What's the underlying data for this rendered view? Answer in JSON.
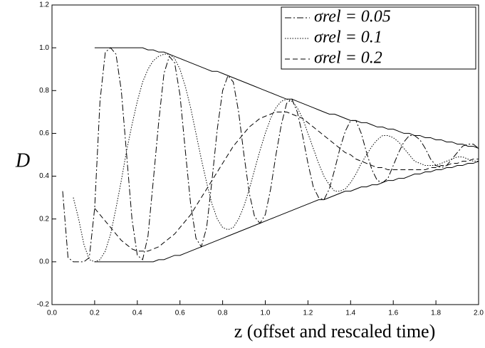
{
  "chart_data": {
    "type": "line",
    "xlabel": "z (offset and rescaled time)",
    "ylabel": "D",
    "xlim": [
      0,
      2
    ],
    "ylim": [
      -0.2,
      1.2
    ],
    "xticks": [
      {
        "value": 0,
        "label": "0.0"
      },
      0.2,
      0.4,
      0.6,
      0.8,
      {
        "value": 1,
        "label": "1.0"
      },
      1.2,
      1.4,
      1.6,
      1.8,
      {
        "value": 2,
        "label": "2.0"
      }
    ],
    "yticks": [
      -0.2,
      {
        "value": 0,
        "label": "0.0"
      },
      0.2,
      0.4,
      0.6,
      0.8,
      {
        "value": 1,
        "label": "1.0"
      },
      1.2
    ],
    "legend": "upper right",
    "x": [
      0.05,
      0.075,
      0.1,
      0.125,
      0.15,
      0.175,
      0.2,
      0.225,
      0.25,
      0.275,
      0.3,
      0.325,
      0.35,
      0.375,
      0.4,
      0.425,
      0.45,
      0.475,
      0.5,
      0.525,
      0.55,
      0.575,
      0.6,
      0.625,
      0.65,
      0.675,
      0.7,
      0.725,
      0.75,
      0.775,
      0.8,
      0.825,
      0.85,
      0.875,
      0.9,
      0.925,
      0.95,
      0.975,
      1.0,
      1.025,
      1.05,
      1.075,
      1.1,
      1.125,
      1.15,
      1.175,
      1.2,
      1.225,
      1.25,
      1.275,
      1.3,
      1.325,
      1.35,
      1.375,
      1.4,
      1.425,
      1.45,
      1.475,
      1.5,
      1.525,
      1.55,
      1.575,
      1.6,
      1.625,
      1.65,
      1.675,
      1.7,
      1.725,
      1.75,
      1.775,
      1.8,
      1.825,
      1.85,
      1.875,
      1.9,
      1.925,
      1.95,
      1.975,
      2.0
    ],
    "series": [
      {
        "name": "σrel = 0.05",
        "color": "#000000",
        "dash": "9,3,2,3",
        "values": [
          0.33,
          0.02,
          0,
          0,
          0,
          0.02,
          0.25,
          0.75,
          0.98,
          1.0,
          0.97,
          0.8,
          0.5,
          0.2,
          0.03,
          0.01,
          0.12,
          0.38,
          0.65,
          0.88,
          0.96,
          0.93,
          0.78,
          0.52,
          0.27,
          0.11,
          0.07,
          0.16,
          0.38,
          0.62,
          0.8,
          0.87,
          0.84,
          0.7,
          0.5,
          0.32,
          0.21,
          0.18,
          0.22,
          0.34,
          0.5,
          0.64,
          0.74,
          0.76,
          0.7,
          0.59,
          0.46,
          0.35,
          0.3,
          0.29,
          0.34,
          0.43,
          0.53,
          0.61,
          0.66,
          0.66,
          0.6,
          0.51,
          0.43,
          0.38,
          0.37,
          0.39,
          0.45,
          0.51,
          0.56,
          0.59,
          0.59,
          0.57,
          0.53,
          0.48,
          0.45,
          0.44,
          0.45,
          0.48,
          0.51,
          0.54,
          0.55,
          0.55,
          0.53
        ]
      },
      {
        "name": "σrel = 0.1",
        "color": "#000000",
        "dash": "1.5,2",
        "values": [
          null,
          null,
          0.3,
          0.2,
          0.08,
          0.01,
          0,
          0.01,
          0.05,
          0.13,
          0.25,
          0.38,
          0.52,
          0.64,
          0.75,
          0.84,
          0.9,
          0.94,
          0.96,
          0.97,
          0.97,
          0.95,
          0.9,
          0.82,
          0.72,
          0.6,
          0.48,
          0.37,
          0.27,
          0.2,
          0.16,
          0.15,
          0.16,
          0.2,
          0.26,
          0.34,
          0.43,
          0.52,
          0.6,
          0.67,
          0.72,
          0.75,
          0.76,
          0.75,
          0.72,
          0.67,
          0.6,
          0.53,
          0.46,
          0.4,
          0.36,
          0.33,
          0.33,
          0.34,
          0.37,
          0.41,
          0.46,
          0.5,
          0.54,
          0.57,
          0.59,
          0.59,
          0.58,
          0.56,
          0.53,
          0.5,
          0.47,
          0.46,
          0.45,
          0.45,
          0.45,
          0.46,
          0.47,
          0.48,
          0.49,
          0.49,
          0.48,
          0.47,
          0.47
        ]
      },
      {
        "name": "σrel = 0.2",
        "color": "#000000",
        "dash": "7,4",
        "values": [
          null,
          null,
          null,
          null,
          null,
          null,
          0.25,
          0.22,
          0.19,
          0.16,
          0.13,
          0.1,
          0.08,
          0.06,
          0.05,
          0.05,
          0.05,
          0.06,
          0.07,
          0.09,
          0.11,
          0.13,
          0.16,
          0.19,
          0.22,
          0.26,
          0.3,
          0.34,
          0.38,
          0.42,
          0.46,
          0.5,
          0.54,
          0.57,
          0.6,
          0.63,
          0.65,
          0.67,
          0.68,
          0.69,
          0.7,
          0.7,
          0.7,
          0.69,
          0.68,
          0.67,
          0.65,
          0.63,
          0.61,
          0.59,
          0.57,
          0.55,
          0.53,
          0.51,
          0.5,
          0.48,
          0.47,
          0.46,
          0.45,
          0.44,
          0.44,
          0.43,
          0.43,
          0.43,
          0.43,
          0.43,
          0.43,
          0.43,
          0.43,
          0.44,
          0.44,
          0.45,
          0.45,
          0.46,
          0.46,
          0.47,
          0.47,
          0.48,
          0.48
        ]
      },
      {
        "color": "#000000",
        "values": [
          null,
          null,
          null,
          null,
          null,
          null,
          1,
          1,
          1,
          1,
          1,
          1,
          1,
          1,
          1,
          1,
          0.99,
          0.99,
          0.98,
          0.98,
          0.97,
          0.96,
          0.95,
          0.94,
          0.93,
          0.92,
          0.91,
          0.9,
          0.89,
          0.89,
          0.88,
          0.87,
          0.86,
          0.85,
          0.84,
          0.83,
          0.82,
          0.81,
          0.8,
          0.79,
          0.78,
          0.77,
          0.76,
          0.76,
          0.75,
          0.74,
          0.73,
          0.72,
          0.71,
          0.7,
          0.69,
          0.69,
          0.68,
          0.67,
          0.66,
          0.66,
          0.65,
          0.65,
          0.64,
          0.63,
          0.63,
          0.62,
          0.62,
          0.61,
          0.6,
          0.6,
          0.59,
          0.59,
          0.58,
          0.58,
          0.57,
          0.57,
          0.56,
          0.56,
          0.55,
          0.55,
          0.54,
          0.54,
          0.53
        ]
      },
      {
        "color": "#000000",
        "values": [
          null,
          null,
          null,
          null,
          null,
          null,
          0,
          0,
          0,
          0,
          0,
          0,
          0,
          0,
          0,
          0,
          0,
          0,
          0.01,
          0.01,
          0.02,
          0.03,
          0.03,
          0.04,
          0.05,
          0.06,
          0.07,
          0.08,
          0.09,
          0.1,
          0.11,
          0.12,
          0.13,
          0.14,
          0.15,
          0.16,
          0.17,
          0.18,
          0.19,
          0.2,
          0.21,
          0.22,
          0.23,
          0.24,
          0.25,
          0.26,
          0.27,
          0.28,
          0.29,
          0.29,
          0.3,
          0.31,
          0.32,
          0.33,
          0.33,
          0.34,
          0.35,
          0.35,
          0.36,
          0.36,
          0.37,
          0.38,
          0.38,
          0.39,
          0.39,
          0.4,
          0.41,
          0.41,
          0.42,
          0.42,
          0.43,
          0.43,
          0.44,
          0.44,
          0.45,
          0.45,
          0.46,
          0.46,
          0.47
        ]
      }
    ]
  }
}
